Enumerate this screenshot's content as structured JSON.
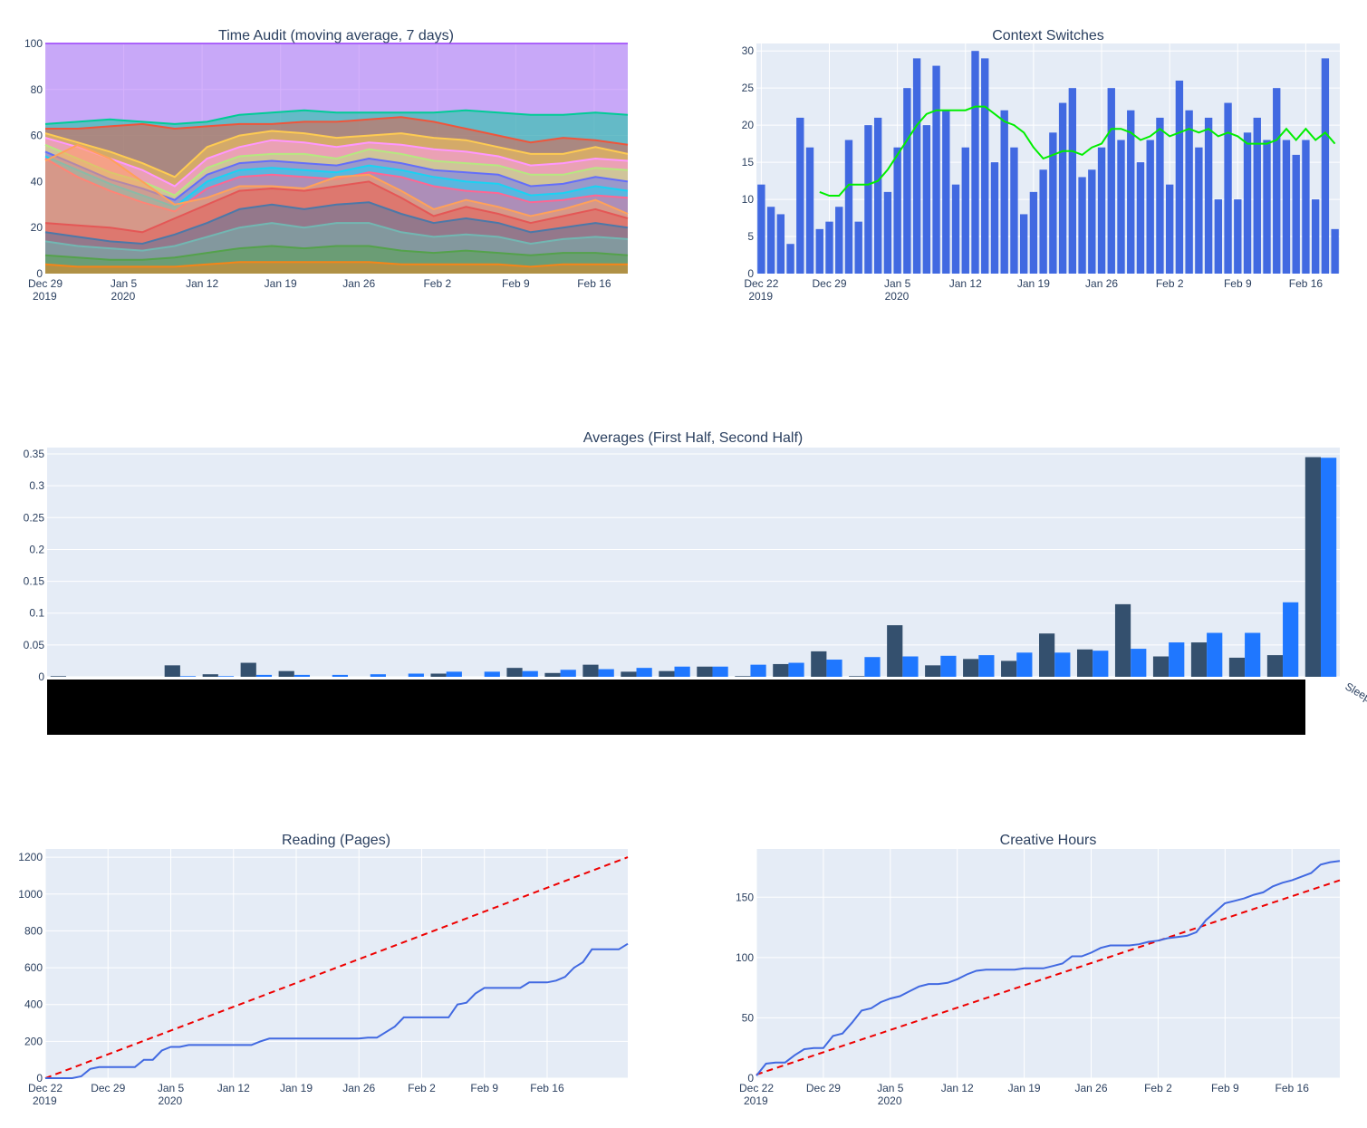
{
  "colors": {
    "plot_bg": "#e5ecf6",
    "grid": "#ffffff",
    "text": "#2a3f5f",
    "bar_blue": "#4169e1",
    "line_green": "#00ee00",
    "first_half": "#34506e",
    "second_half": "#1f77ff",
    "target_red": "#ee0000",
    "redaction": "#000000"
  },
  "time_audit": {
    "title": "Time Audit (moving average, 7 days)",
    "x_ticks": [
      [
        "Dec 29",
        "2019"
      ],
      [
        "Jan 5",
        "2020"
      ],
      [
        "Jan 12"
      ],
      [
        "Jan 19"
      ],
      [
        "Jan 26"
      ],
      [
        "Feb 2"
      ],
      [
        "Feb 9"
      ],
      [
        "Feb 16"
      ]
    ],
    "y_ticks": [
      "0",
      "20",
      "40",
      "60",
      "80",
      "100"
    ]
  },
  "context": {
    "title": "Context Switches",
    "x_ticks": [
      [
        "Dec 22",
        "2019"
      ],
      [
        "Dec 29"
      ],
      [
        "Jan 5",
        "2020"
      ],
      [
        "Jan 12"
      ],
      [
        "Jan 19"
      ],
      [
        "Jan 26"
      ],
      [
        "Feb 2"
      ],
      [
        "Feb 9"
      ],
      [
        "Feb 16"
      ]
    ],
    "y_ticks": [
      "0",
      "5",
      "10",
      "15",
      "20",
      "25",
      "30"
    ]
  },
  "averages": {
    "title": "Averages (First Half, Second Half)",
    "y_ticks": [
      "0",
      "0.05",
      "0.1",
      "0.15",
      "0.2",
      "0.25",
      "0.3",
      "0.35"
    ],
    "last_label": "Sleeping"
  },
  "reading": {
    "title": "Reading (Pages)",
    "x_ticks": [
      [
        "Dec 22",
        "2019"
      ],
      [
        "Dec 29"
      ],
      [
        "Jan 5",
        "2020"
      ],
      [
        "Jan 12"
      ],
      [
        "Jan 19"
      ],
      [
        "Jan 26"
      ],
      [
        "Feb 2"
      ],
      [
        "Feb 9"
      ],
      [
        "Feb 16"
      ]
    ],
    "y_ticks": [
      "0",
      "200",
      "400",
      "600",
      "800",
      "1000",
      "1200"
    ]
  },
  "creative": {
    "title": "Creative Hours",
    "x_ticks": [
      [
        "Dec 22",
        "2019"
      ],
      [
        "Dec 29"
      ],
      [
        "Jan 5",
        "2020"
      ],
      [
        "Jan 12"
      ],
      [
        "Jan 19"
      ],
      [
        "Jan 26"
      ],
      [
        "Feb 2"
      ],
      [
        "Feb 9"
      ],
      [
        "Feb 16"
      ]
    ],
    "y_ticks": [
      "0",
      "50",
      "100",
      "150"
    ]
  },
  "chart_data": [
    {
      "type": "area",
      "title": "Time Audit (moving average, 7 days)",
      "x_start": "2019-12-29",
      "x_end": "2020-02-19",
      "ylim": [
        0,
        100
      ],
      "stacked": true,
      "boundaries": [
        {
          "color": "#ab63fa",
          "values": [
            100,
            100,
            100,
            100,
            100,
            100,
            100,
            100,
            100,
            100,
            100,
            100,
            100,
            100,
            100,
            100,
            100,
            100,
            100
          ]
        },
        {
          "color": "#00cc96",
          "values": [
            65,
            66,
            67,
            66,
            65,
            66,
            69,
            70,
            71,
            70,
            70,
            70,
            70,
            71,
            70,
            69,
            69,
            70,
            69
          ]
        },
        {
          "color": "#ef553b",
          "values": [
            63,
            63,
            64,
            65,
            63,
            64,
            65,
            65,
            66,
            66,
            67,
            68,
            66,
            63,
            60,
            57,
            59,
            58,
            56
          ]
        },
        {
          "color": "#fecb52",
          "values": [
            61,
            57,
            53,
            48,
            42,
            55,
            60,
            62,
            61,
            59,
            60,
            61,
            59,
            58,
            55,
            52,
            52,
            55,
            52
          ]
        },
        {
          "color": "#ff97ff",
          "values": [
            59,
            55,
            50,
            45,
            38,
            50,
            55,
            58,
            57,
            55,
            57,
            56,
            54,
            53,
            51,
            47,
            48,
            50,
            49
          ]
        },
        {
          "color": "#b6e880",
          "values": [
            56,
            50,
            44,
            40,
            34,
            46,
            51,
            52,
            52,
            50,
            54,
            52,
            49,
            48,
            47,
            43,
            43,
            46,
            45
          ]
        },
        {
          "color": "#636efa",
          "values": [
            53,
            47,
            41,
            37,
            32,
            43,
            48,
            49,
            48,
            47,
            50,
            48,
            45,
            44,
            43,
            38,
            39,
            42,
            40
          ]
        },
        {
          "color": "#19d3f3",
          "values": [
            51,
            45,
            39,
            34,
            29,
            40,
            45,
            46,
            45,
            44,
            47,
            45,
            42,
            40,
            39,
            34,
            35,
            38,
            36
          ]
        },
        {
          "color": "#ff6692",
          "values": [
            50,
            42,
            36,
            31,
            27,
            37,
            42,
            43,
            42,
            41,
            44,
            42,
            38,
            36,
            35,
            31,
            32,
            34,
            33
          ]
        },
        {
          "color": "#ffa15a",
          "values": [
            49,
            56,
            50,
            40,
            30,
            33,
            38,
            38,
            37,
            42,
            43,
            36,
            28,
            32,
            29,
            25,
            28,
            32,
            26
          ]
        },
        {
          "color": "#e45756",
          "values": [
            22,
            21,
            20,
            18,
            24,
            30,
            36,
            37,
            36,
            38,
            40,
            33,
            25,
            29,
            26,
            22,
            25,
            28,
            24
          ]
        },
        {
          "color": "#4c78a8",
          "values": [
            18,
            16,
            14,
            13,
            17,
            22,
            28,
            30,
            28,
            30,
            31,
            26,
            22,
            24,
            22,
            18,
            20,
            22,
            20
          ]
        },
        {
          "color": "#72b7b2",
          "values": [
            14,
            12,
            11,
            10,
            12,
            16,
            20,
            22,
            20,
            22,
            22,
            18,
            16,
            17,
            16,
            13,
            15,
            16,
            15
          ]
        },
        {
          "color": "#54a24b",
          "values": [
            8,
            7,
            6,
            6,
            7,
            9,
            11,
            12,
            11,
            12,
            12,
            10,
            9,
            10,
            9,
            8,
            9,
            9,
            8
          ]
        },
        {
          "color": "#f58518",
          "values": [
            4,
            3,
            3,
            3,
            3,
            4,
            5,
            5,
            5,
            5,
            5,
            4,
            4,
            4,
            4,
            3,
            4,
            4,
            4
          ]
        }
      ]
    },
    {
      "type": "bar",
      "title": "Context Switches",
      "x_start": "2019-12-22",
      "ylim": [
        0,
        31
      ],
      "values": [
        12,
        9,
        8,
        4,
        21,
        17,
        6,
        7,
        9,
        18,
        7,
        20,
        21,
        11,
        17,
        25,
        29,
        20,
        28,
        22,
        12,
        17,
        30,
        29,
        15,
        22,
        17,
        8,
        11,
        14,
        19,
        23,
        25,
        13,
        14,
        17,
        25,
        18,
        22,
        15,
        18,
        21,
        12,
        26,
        22,
        17,
        21,
        10,
        23,
        10,
        19,
        21,
        18,
        25,
        18,
        16,
        18,
        10,
        29,
        6
      ],
      "moving_average": [
        null,
        null,
        null,
        null,
        null,
        null,
        11,
        10.5,
        10.5,
        12,
        12,
        12,
        12.5,
        14,
        16,
        18,
        20,
        21.5,
        22,
        22,
        22,
        22,
        22.5,
        22.5,
        21.5,
        20.5,
        20,
        19,
        17,
        15.5,
        16,
        16.5,
        16.5,
        16,
        17,
        17.5,
        19.5,
        19.5,
        19,
        18,
        18.5,
        19.5,
        18.5,
        19,
        19.5,
        19,
        19.5,
        18.5,
        19,
        18.5,
        17.5,
        17.5,
        17.5,
        18,
        19.5,
        18,
        19.5,
        18,
        19,
        17.5
      ]
    },
    {
      "type": "bar",
      "title": "Averages (First Half, Second Half)",
      "ylim": [
        0,
        0.36
      ],
      "categories_visible": [
        "Sleeping"
      ],
      "series": [
        {
          "values": [
            0.001,
            0,
            0,
            0.018,
            0.004,
            0.022,
            0.009,
            0,
            0,
            0,
            0.005,
            0,
            0.014,
            0.006,
            0.019,
            0.008,
            0.009,
            0.016,
            0.001,
            0.02,
            0.04,
            0.001,
            0.081,
            0.018,
            0.028,
            0.025,
            0.068,
            0.043,
            0.114,
            0.032,
            0.054,
            0.03,
            0.034,
            0.345
          ]
        },
        {
          "values": [
            0,
            0,
            0,
            0.001,
            0.001,
            0.003,
            0.003,
            0.003,
            0.004,
            0.005,
            0.008,
            0.008,
            0.009,
            0.011,
            0.012,
            0.014,
            0.016,
            0.016,
            0.019,
            0.022,
            0.027,
            0.031,
            0.032,
            0.033,
            0.034,
            0.038,
            0.038,
            0.041,
            0.044,
            0.054,
            0.069,
            0.069,
            0.117,
            0.344
          ]
        }
      ]
    },
    {
      "type": "line",
      "title": "Reading (Pages)",
      "x_start": "2019-12-22",
      "ylim": [
        0,
        1245
      ],
      "values": [
        0,
        0,
        0,
        0,
        10,
        50,
        60,
        60,
        60,
        60,
        60,
        100,
        100,
        150,
        170,
        170,
        180,
        180,
        180,
        180,
        180,
        180,
        180,
        180,
        200,
        215,
        215,
        215,
        215,
        215,
        215,
        215,
        215,
        215,
        215,
        215,
        220,
        220,
        250,
        280,
        330,
        330,
        330,
        330,
        330,
        330,
        400,
        410,
        460,
        490,
        490,
        490,
        490,
        490,
        520,
        520,
        520,
        530,
        550,
        600,
        630,
        700,
        700,
        700,
        700,
        730
      ],
      "target": {
        "from": 0,
        "to": 1200
      }
    },
    {
      "type": "line",
      "title": "Creative Hours",
      "x_start": "2019-12-22",
      "ylim": [
        0,
        190
      ],
      "values": [
        2,
        12,
        13,
        13,
        19,
        24,
        25,
        25,
        35,
        37,
        46,
        56,
        58,
        63,
        66,
        68,
        72,
        76,
        78,
        78,
        79,
        82,
        86,
        89,
        90,
        90,
        90,
        90,
        91,
        91,
        91,
        93,
        95,
        101,
        101,
        104,
        108,
        110,
        110,
        110,
        111,
        113,
        114,
        116,
        117,
        118,
        121,
        131,
        138,
        145,
        147,
        149,
        152,
        154,
        159,
        162,
        164,
        167,
        170,
        177,
        179,
        180
      ],
      "target": {
        "from": 3,
        "to": 164
      }
    }
  ]
}
